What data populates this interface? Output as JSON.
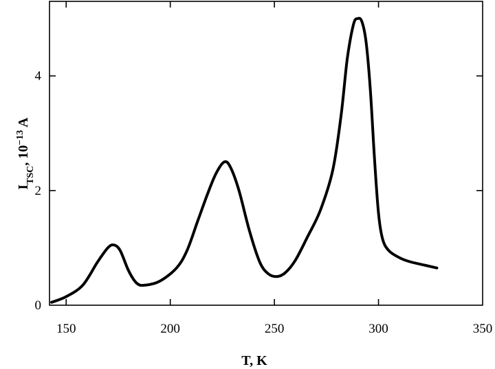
{
  "chart_data": {
    "type": "line",
    "title": "",
    "xlabel": "T, K",
    "ylabel": {
      "main": "I",
      "subscript": "TSC",
      "rest": ", 10",
      "exponent": "−13",
      "unit": " A"
    },
    "xlim": [
      142,
      350
    ],
    "ylim": [
      0,
      5.3
    ],
    "x_ticks": [
      150,
      200,
      250,
      300,
      350
    ],
    "y_ticks": [
      0,
      2,
      4
    ],
    "grid": false,
    "legend": "none",
    "series": [
      {
        "color": "#000000",
        "x": [
          143,
          150,
          158,
          165,
          170,
          173,
          176,
          180,
          184,
          188,
          195,
          203,
          208,
          213,
          218,
          222,
          226,
          229,
          233,
          238,
          243,
          247,
          251,
          255,
          260,
          266,
          272,
          278,
          282,
          285,
          288,
          290,
          292,
          294,
          296,
          298,
          300,
          302,
          305,
          310,
          315,
          322,
          328
        ],
        "y": [
          0.05,
          0.15,
          0.35,
          0.75,
          1.0,
          1.05,
          0.95,
          0.6,
          0.38,
          0.35,
          0.42,
          0.65,
          0.95,
          1.45,
          1.95,
          2.3,
          2.5,
          2.4,
          2.0,
          1.3,
          0.75,
          0.55,
          0.5,
          0.56,
          0.78,
          1.2,
          1.65,
          2.35,
          3.3,
          4.3,
          4.9,
          5.0,
          4.95,
          4.6,
          3.8,
          2.6,
          1.6,
          1.15,
          0.95,
          0.83,
          0.76,
          0.7,
          0.65
        ]
      }
    ]
  }
}
